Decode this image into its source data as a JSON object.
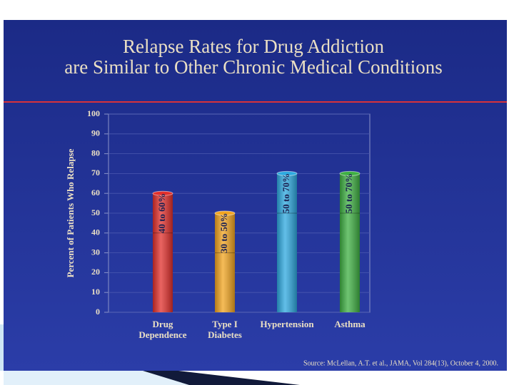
{
  "chart_data": {
    "type": "bar",
    "title": [
      "Relapse Rates for Drug Addiction",
      "are Similar to Other Chronic Medical Conditions"
    ],
    "y_label": "Percent of Patients Who Relapse",
    "categories": [
      [
        "Drug",
        "Dependence"
      ],
      [
        "Type I",
        "Diabetes"
      ],
      [
        "Hypertension"
      ],
      [
        "Asthma"
      ]
    ],
    "low": [
      40,
      30,
      50,
      50
    ],
    "values": [
      60,
      50,
      70,
      70
    ],
    "value_labels": [
      "40 to 60%",
      "30 to 50%",
      "50 to 70%",
      "50 to 70%"
    ],
    "colors": [
      "#e2302c",
      "#f2a521",
      "#2ea9e0",
      "#3fb043"
    ],
    "ylim": [
      0,
      100
    ],
    "yticks": [
      0,
      10,
      20,
      30,
      40,
      50,
      60,
      70,
      80,
      90,
      100
    ],
    "grid": true,
    "source": "Source: McLellan, A.T. et al., JAMA, Vol 284(13), October 4, 2000."
  }
}
